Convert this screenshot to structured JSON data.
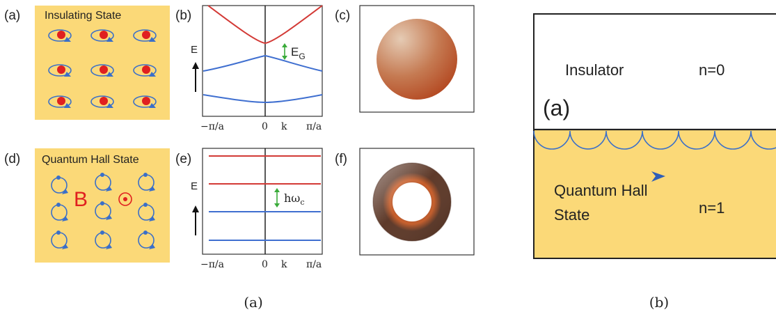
{
  "panel_labels": {
    "a": "(a)",
    "b": "(b)",
    "c": "(c)",
    "d": "(d)",
    "e": "(e)",
    "f": "(f)"
  },
  "insulating_title": "Insulating State",
  "quantum_hall_title": "Quantum Hall State",
  "b_field_label": "B",
  "energy_axis_label": "E",
  "gap_label": "E",
  "gap_subscript": "G",
  "cyclotron_label": "hω",
  "cyclotron_subscript": "c",
  "k_axis_ticks": [
    "−π/a",
    "0",
    "k",
    "π/a"
  ],
  "figure_captions": {
    "left": "(a)",
    "right": "(b)"
  },
  "right_panel": {
    "label": "(a)",
    "insulator_text": "Insulator",
    "insulator_index": "n=0",
    "qh_text_line1": "Quantum Hall",
    "qh_text_line2": "State",
    "qh_index": "n=1"
  },
  "colors": {
    "yellow_fill": "#fbd978",
    "electron_red": "#e02020",
    "orbit_blue": "#3a6fc9",
    "band_red": "#d33a36",
    "band_blue": "#3f6fd0",
    "gap_green": "#3aab3a",
    "brown": "#b65226"
  },
  "icons": {
    "field_symbol": "circle-dot-icon",
    "energy_arrow": "up-arrow-icon",
    "gap_arrow": "double-arrow-icon"
  }
}
